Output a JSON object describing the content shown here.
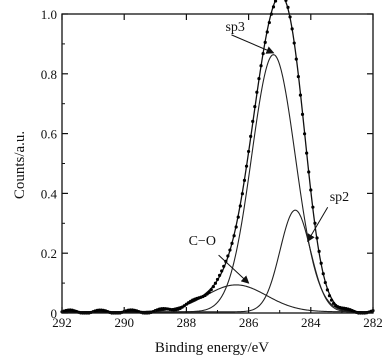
{
  "chart_data": {
    "type": "line",
    "title": "",
    "xlabel": "Binding energy/eV",
    "ylabel": "Counts/a.u.",
    "xlim": [
      292,
      282
    ],
    "ylim": [
      0,
      1.0
    ],
    "x_reversed": true,
    "grid": false,
    "x_ticks": [
      292,
      290,
      288,
      286,
      284,
      282
    ],
    "x_tick_labels": [
      "292",
      "290",
      "288",
      "286",
      "284",
      "282"
    ],
    "y_ticks": [
      0,
      0.2,
      0.4,
      0.6,
      0.8,
      1.0
    ],
    "y_tick_labels": [
      "0",
      "0.2",
      "0.4",
      "0.6",
      "0.8",
      "1.0"
    ],
    "series": [
      {
        "name": "sp3",
        "shape": "gaussian",
        "center": 285.2,
        "amplitude": 0.86,
        "fwhm": 1.65,
        "color": "#222222"
      },
      {
        "name": "sp2",
        "shape": "gaussian",
        "center": 284.5,
        "amplitude": 0.34,
        "fwhm": 1.15,
        "color": "#222222"
      },
      {
        "name": "C-O",
        "shape": "gaussian",
        "center": 286.4,
        "amplitude": 0.09,
        "fwhm": 2.3,
        "color": "#222222"
      },
      {
        "name": "envelope",
        "shape": "sum",
        "color": "#111111"
      }
    ],
    "annotations": [
      {
        "text": "sp3",
        "series": "sp3",
        "at_x": 285.2,
        "at_y": 0.87
      },
      {
        "text": "sp2",
        "series": "sp2",
        "at_x": 284.1,
        "at_y": 0.24
      },
      {
        "text": "C−O",
        "series": "C-O",
        "at_x": 286.0,
        "at_y": 0.1
      }
    ],
    "marker_color": "#000000",
    "line_color": "#222222"
  }
}
